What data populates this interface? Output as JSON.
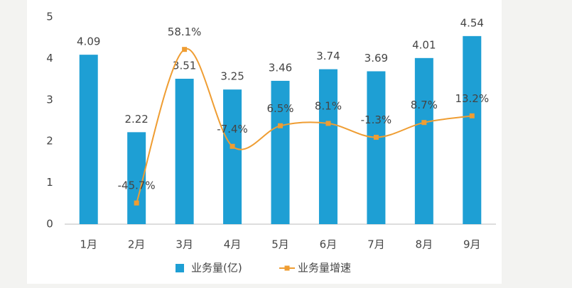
{
  "chart_data": {
    "type": "bar_line",
    "categories": [
      "1月",
      "2月",
      "3月",
      "4月",
      "5月",
      "6月",
      "7月",
      "8月",
      "9月"
    ],
    "series": [
      {
        "name": "业务量(亿)",
        "type": "bar",
        "color": "#1e9fd4",
        "values": [
          4.09,
          2.22,
          3.51,
          3.25,
          3.46,
          3.74,
          3.69,
          4.01,
          4.54
        ]
      },
      {
        "name": "业务量增速",
        "type": "line",
        "axis": "y2",
        "color": "#ef9d32",
        "values": [
          null,
          -45.7,
          58.1,
          -7.4,
          6.5,
          8.1,
          -1.3,
          8.7,
          13.2
        ],
        "value_labels": [
          null,
          "-45.7%",
          "58.1%",
          "-7.4%",
          "6.5%",
          "8.1%",
          "-1.3%",
          "8.7%",
          "13.2%"
        ]
      }
    ],
    "ylim": [
      0,
      5
    ],
    "yticks": [
      0,
      1,
      2,
      3,
      4,
      5
    ],
    "y2lim": [
      -60,
      80
    ],
    "legend": "bottom"
  }
}
